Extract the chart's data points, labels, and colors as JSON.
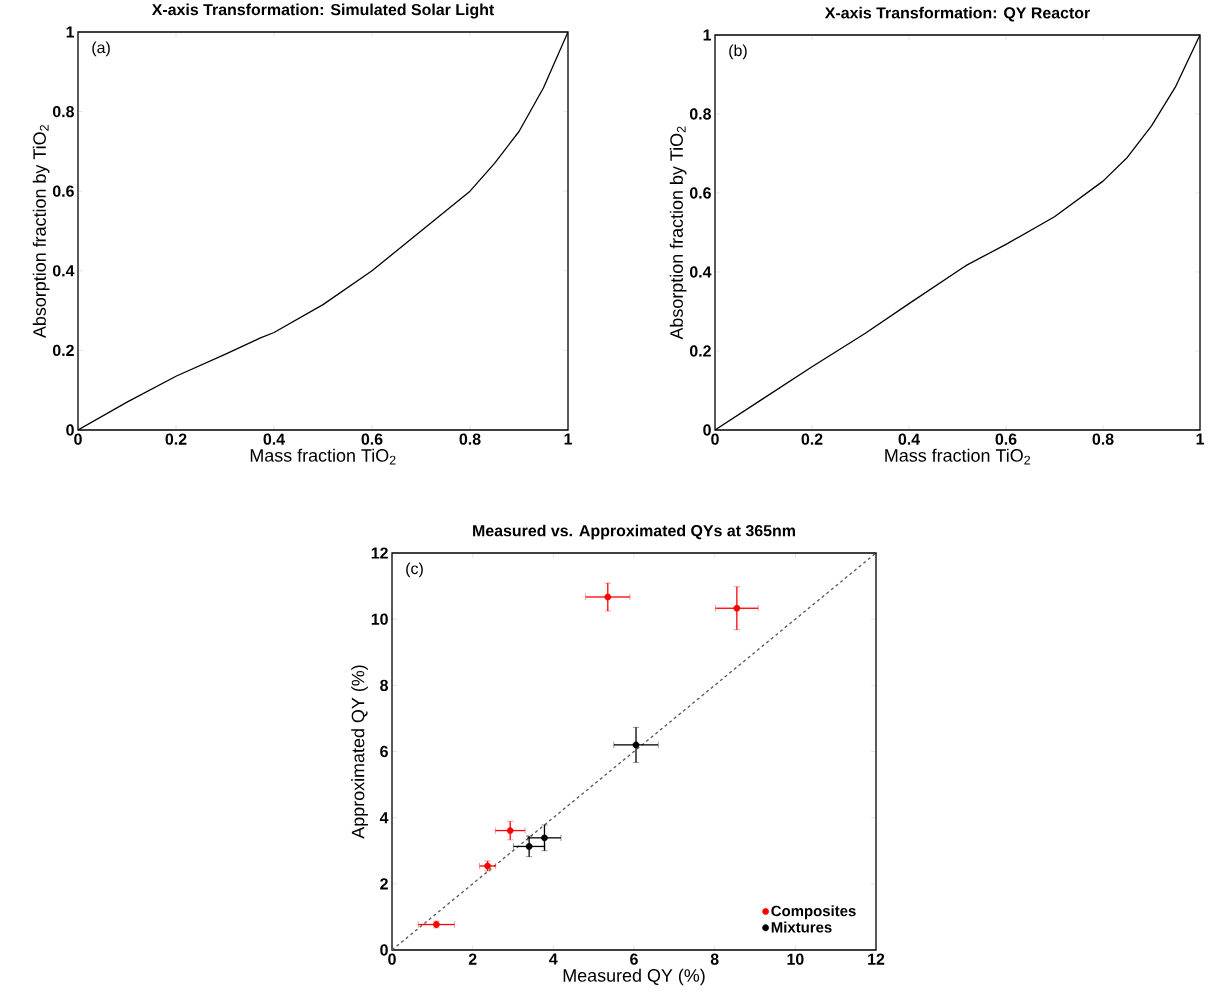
{
  "chart_data": [
    {
      "type": "line",
      "title": "X-axis Transformation: Simulated Solar Light",
      "xlabel": "Mass fraction TiO$_{2}$",
      "ylabel": "Absorption fraction by TiO$_{2}$",
      "annotations": [
        "(a)"
      ],
      "xlim": [
        0,
        1
      ],
      "ylim": [
        0,
        1
      ],
      "xticks": [
        0,
        0.2,
        0.4,
        0.6,
        0.8,
        1
      ],
      "yticks": [
        0,
        0.2,
        0.4,
        0.6,
        0.8,
        1
      ],
      "series": [
        {
          "color": "#000000",
          "x": [
            0,
            0.05,
            0.1,
            0.2,
            0.3,
            0.37,
            0.4,
            0.5,
            0.6,
            0.7,
            0.8,
            0.85,
            0.9,
            0.95,
            1
          ],
          "values": [
            0,
            0.035,
            0.07,
            0.135,
            0.19,
            0.23,
            0.245,
            0.315,
            0.4,
            0.5,
            0.6,
            0.67,
            0.75,
            0.86,
            1
          ]
        }
      ]
    },
    {
      "type": "line",
      "title": "X-axis Transformation: QY Reactor",
      "xlabel": "Mass fraction TiO$_{2}$",
      "ylabel": "Absorption fraction by TiO$_{2}$",
      "annotations": [
        "(b)"
      ],
      "xlim": [
        0,
        1
      ],
      "ylim": [
        0,
        1
      ],
      "xticks": [
        0,
        0.2,
        0.4,
        0.6,
        0.8,
        1
      ],
      "yticks": [
        0,
        0.2,
        0.4,
        0.6,
        0.8,
        1
      ],
      "series": [
        {
          "color": "#000000",
          "x": [
            0,
            0.1,
            0.2,
            0.31,
            0.4,
            0.51,
            0.52,
            0.6,
            0.7,
            0.8,
            0.85,
            0.9,
            0.95,
            1
          ],
          "values": [
            0,
            0.08,
            0.16,
            0.245,
            0.32,
            0.41,
            0.418,
            0.47,
            0.54,
            0.63,
            0.69,
            0.77,
            0.87,
            1
          ]
        }
      ]
    },
    {
      "type": "scatter",
      "title": "Measured vs. Approximated QYs at 365nm",
      "xlabel": "Measured QY (%)",
      "ylabel": "Approximated QY (%)",
      "annotations": [
        "(c)"
      ],
      "xlim": [
        0,
        12
      ],
      "ylim": [
        0,
        12
      ],
      "xticks": [
        0,
        2,
        4,
        6,
        8,
        10,
        12
      ],
      "yticks": [
        0,
        2,
        4,
        6,
        8,
        10,
        12
      ],
      "legend": "bottom right",
      "series": [
        {
          "type": "line",
          "color": "#555555",
          "line_style": "dashed",
          "x": [
            0,
            12
          ],
          "values": [
            0,
            12
          ]
        },
        {
          "name": "Composites",
          "marker": "circle",
          "color": "#ff0000",
          "x": [
            1.1,
            2.37,
            2.93,
            5.35,
            8.55
          ],
          "values": [
            0.77,
            2.54,
            3.61,
            10.67,
            10.33
          ],
          "xerrors": [
            0.45,
            0.2,
            0.37,
            0.55,
            0.53
          ],
          "errors": [
            0.1,
            0.15,
            0.28,
            0.42,
            0.65
          ]
        },
        {
          "name": "Mixtures",
          "marker": "circle",
          "color": "#000000",
          "x": [
            3.4,
            3.78,
            6.05
          ],
          "values": [
            3.13,
            3.39,
            6.2
          ],
          "xerrors": [
            0.39,
            0.41,
            0.55
          ],
          "errors": [
            0.31,
            0.39,
            0.53
          ]
        }
      ]
    }
  ]
}
